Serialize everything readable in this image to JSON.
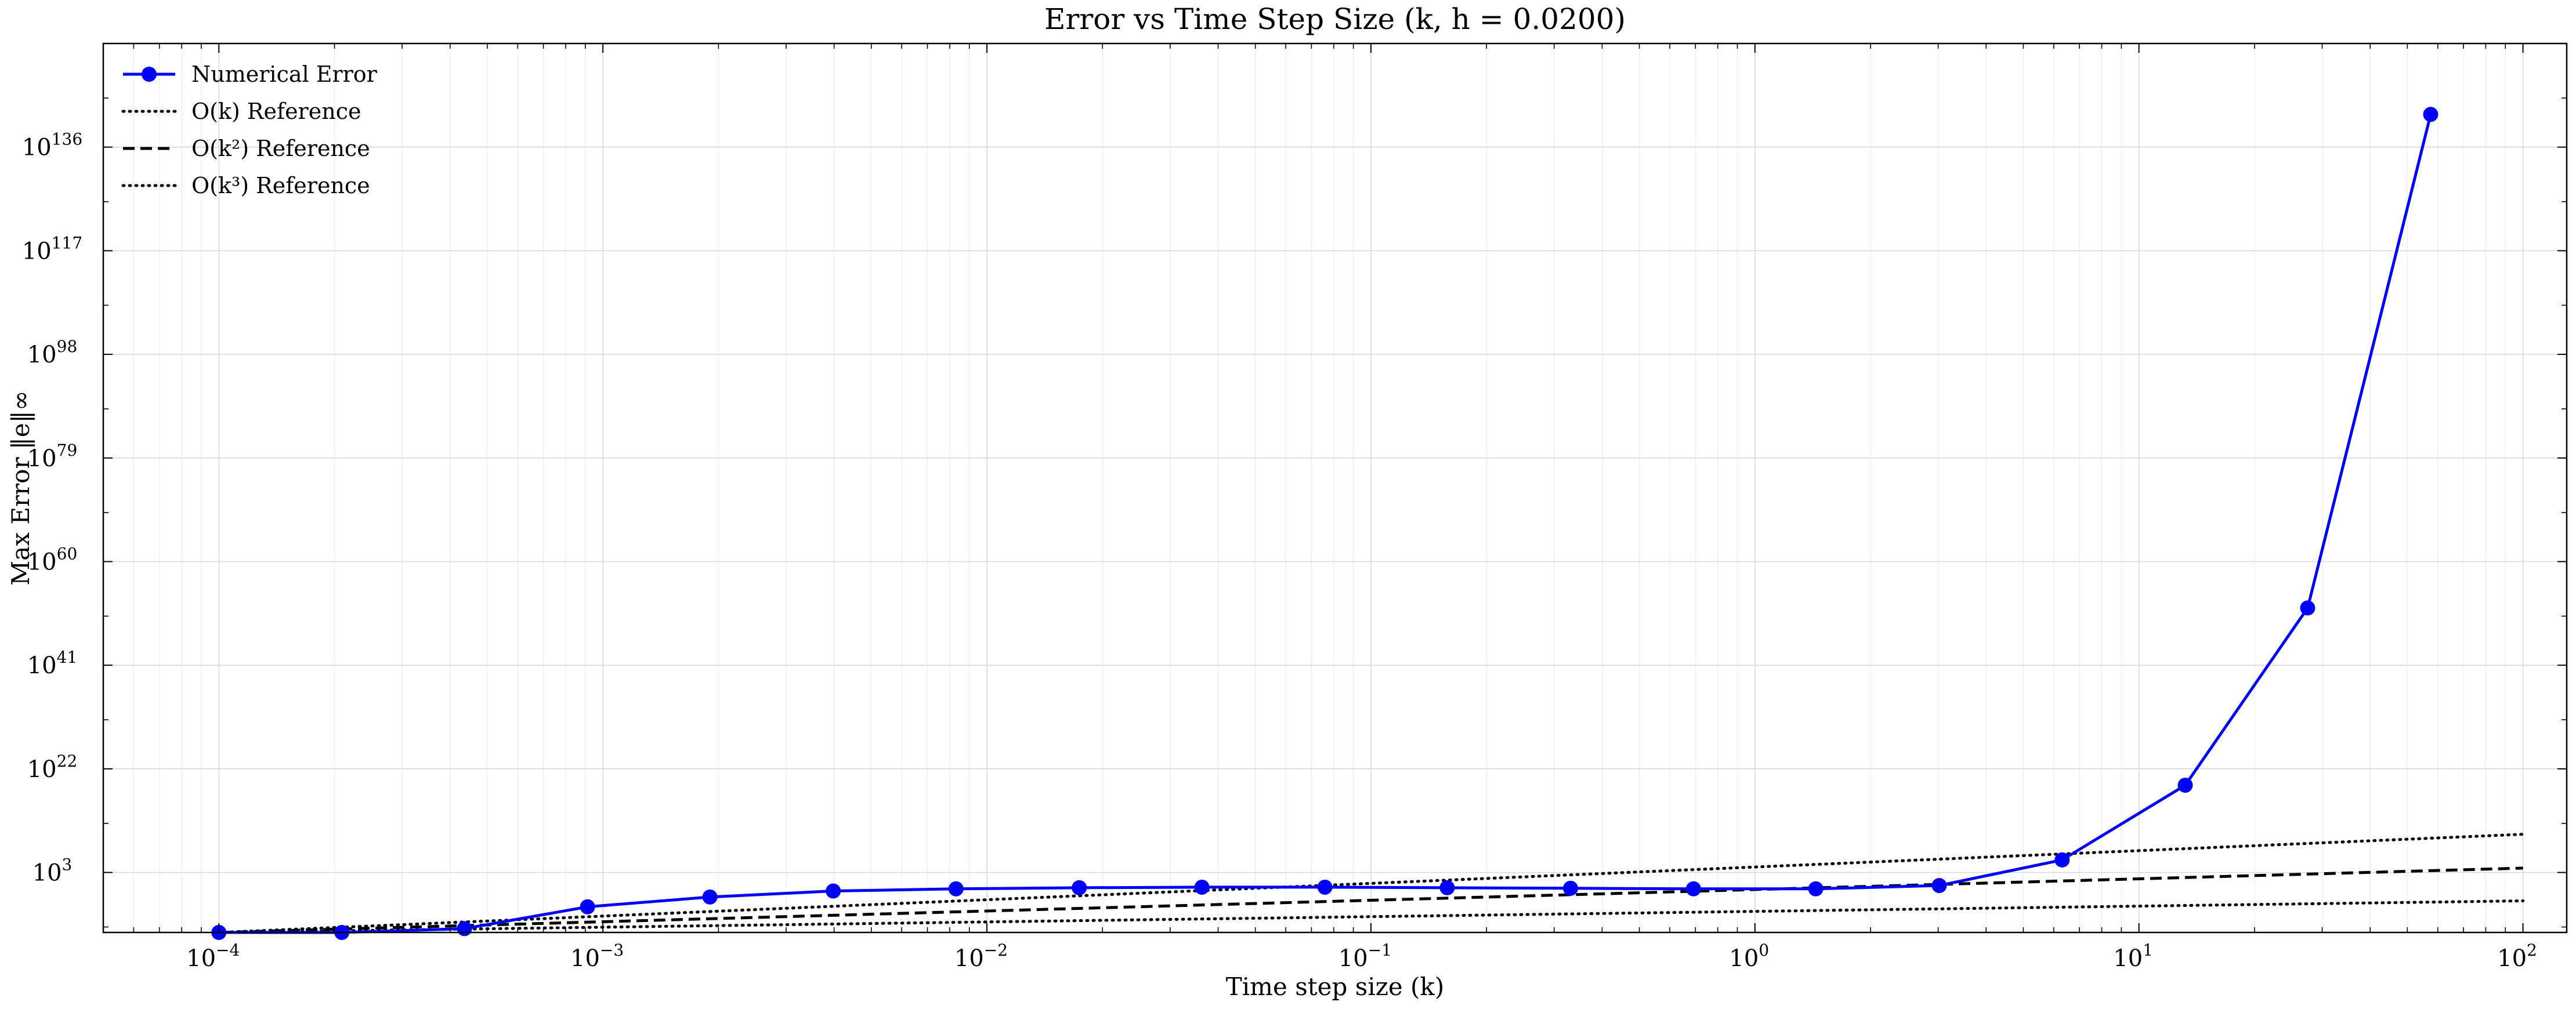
{
  "chart_data": {
    "type": "line",
    "title": "Error vs Time Step Size (k, h = 0.0200)",
    "xlabel": "Time step size (k)",
    "ylabel": "Max Error ‖e‖∞",
    "xscale": "log",
    "yscale": "log",
    "xlim": [
      5e-05,
      130
    ],
    "ylim": [
      1e-08,
      1e+155
    ],
    "xticks": [
      {
        "value": 0.0001,
        "base": "10",
        "exp": "−4"
      },
      {
        "value": 0.001,
        "base": "10",
        "exp": "−3"
      },
      {
        "value": 0.01,
        "base": "10",
        "exp": "−2"
      },
      {
        "value": 0.1,
        "base": "10",
        "exp": "−1"
      },
      {
        "value": 1,
        "base": "10",
        "exp": "0"
      },
      {
        "value": 10,
        "base": "10",
        "exp": "1"
      },
      {
        "value": 100,
        "base": "10",
        "exp": "2"
      }
    ],
    "yticks": [
      {
        "exponent": 3,
        "base": "10",
        "exp": "3"
      },
      {
        "exponent": 22,
        "base": "10",
        "exp": "22"
      },
      {
        "exponent": 41,
        "base": "10",
        "exp": "41"
      },
      {
        "exponent": 60,
        "base": "10",
        "exp": "60"
      },
      {
        "exponent": 79,
        "base": "10",
        "exp": "79"
      },
      {
        "exponent": 98,
        "base": "10",
        "exp": "98"
      },
      {
        "exponent": 117,
        "base": "10",
        "exp": "117"
      },
      {
        "exponent": 136,
        "base": "10",
        "exp": "136"
      }
    ],
    "grid": true,
    "legend_position": "top-left",
    "series": [
      {
        "name": "Numerical Error",
        "style": "solid-markers",
        "color": "#0000ff",
        "x": [
          0.0001,
          0.000209,
          0.000436,
          0.000912,
          0.0019,
          0.00398,
          0.00831,
          0.0174,
          0.0363,
          0.0759,
          0.158,
          0.331,
          0.692,
          1.44,
          3.02,
          6.31,
          13.2,
          27.5,
          57.5
        ],
        "y_exponent": [
          -8.0,
          -8.0,
          -7.3,
          -3.3,
          -1.5,
          -0.4,
          0.0,
          0.2,
          0.3,
          0.3,
          0.2,
          0.1,
          0.0,
          0.0,
          0.6,
          5.3,
          19.0,
          51.5,
          142.0
        ]
      },
      {
        "name": "O(k) Reference",
        "style": "dotted",
        "color": "#000000",
        "x": [
          0.0001,
          100
        ],
        "y_exponent": [
          -8.0,
          10.0
        ]
      },
      {
        "name": "O(k²) Reference",
        "style": "dashed",
        "color": "#000000",
        "x": [
          0.0001,
          100
        ],
        "y_exponent": [
          -8.0,
          3.8
        ]
      },
      {
        "name": "O(k³) Reference",
        "style": "dotted",
        "color": "#000000",
        "x": [
          0.0001,
          100
        ],
        "y_exponent": [
          -8.0,
          -2.2
        ]
      }
    ]
  },
  "colors": {
    "series_blue": "#0000ff",
    "reference_black": "#000000",
    "grid": "#d9d9d9"
  }
}
